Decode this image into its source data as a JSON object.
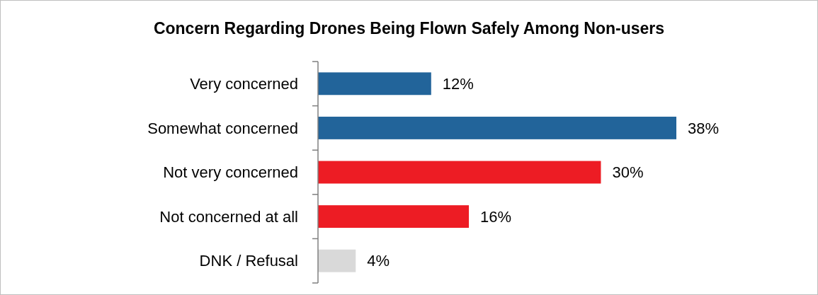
{
  "chart_data": {
    "type": "bar",
    "orientation": "horizontal",
    "title": "Concern Regarding Drones Being Flown Safely Among Non-users",
    "categories": [
      "Very concerned",
      "Somewhat concerned",
      "Not very concerned",
      "Not concerned at all",
      "DNK / Refusal"
    ],
    "values": [
      12,
      38,
      30,
      16,
      4
    ],
    "colors": [
      "#22649a",
      "#22649a",
      "#ed1c24",
      "#ed1c24",
      "#d9d9d9"
    ],
    "value_labels": [
      "12%",
      "38%",
      "30%",
      "16%",
      "4%"
    ]
  }
}
